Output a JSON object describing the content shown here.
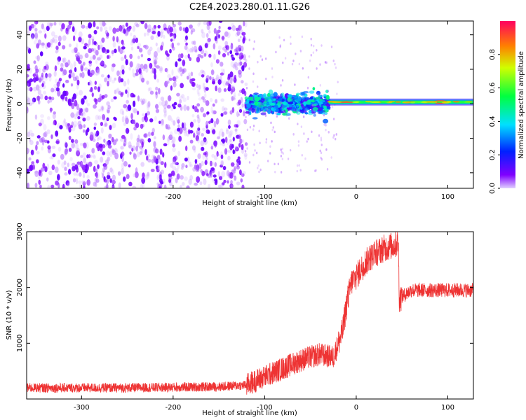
{
  "title": "C2E4.2023.280.01.11.G26",
  "chart_data": [
    {
      "type": "heatmap",
      "xlabel": "Height of straight line (km)",
      "ylabel": "Frequency (Hz)",
      "xlim": [
        -360,
        128
      ],
      "ylim": [
        -49,
        48
      ],
      "xticks": [
        -300,
        -200,
        -100,
        0,
        100
      ],
      "yticks": [
        -40,
        -20,
        0,
        20,
        40
      ],
      "colorbar": {
        "label": "Normalized spectral amplitude",
        "range": [
          0.0,
          1.0
        ],
        "ticks": [
          0.0,
          0.2,
          0.4,
          0.6,
          0.8
        ],
        "colormap": "rainbow (violet-blue-cyan-green-yellow-red-magenta)"
      },
      "features": [
        {
          "region": "noise",
          "x_range": [
            -360,
            -120
          ],
          "freq_range": [
            -49,
            48
          ],
          "amplitude_range": [
            0.0,
            0.15
          ]
        },
        {
          "region": "transition",
          "x_range": [
            -120,
            -30
          ],
          "freq_center": 0,
          "freq_spread": 12,
          "amplitude_range": [
            0.1,
            0.5
          ]
        },
        {
          "region": "carrier",
          "x_range": [
            -30,
            128
          ],
          "freq_center": 1,
          "amplitude_range": [
            0.4,
            1.0
          ],
          "peak_x": 92
        }
      ]
    },
    {
      "type": "line",
      "xlabel": "Height of straight line (km)",
      "ylabel": "SNR (10 * v/v)",
      "xlim": [
        -360,
        128
      ],
      "ylim": [
        0,
        3000
      ],
      "xticks": [
        -300,
        -200,
        -100,
        0,
        100
      ],
      "yticks": [
        1000,
        2000,
        3000
      ],
      "color": "#ee3333",
      "series": [
        {
          "x": [
            -360,
            -300,
            -250,
            -200,
            -150,
            -120,
            -100,
            -80,
            -60,
            -40,
            -25,
            -15,
            -10,
            -5,
            0,
            10,
            20,
            30,
            40,
            46,
            47,
            60,
            80,
            100,
            128
          ],
          "y": [
            200,
            200,
            200,
            210,
            220,
            250,
            400,
            550,
            700,
            800,
            750,
            1200,
            1750,
            2100,
            2200,
            2450,
            2600,
            2700,
            2750,
            2800,
            1800,
            1950,
            1950,
            1950,
            1950
          ]
        }
      ]
    }
  ]
}
